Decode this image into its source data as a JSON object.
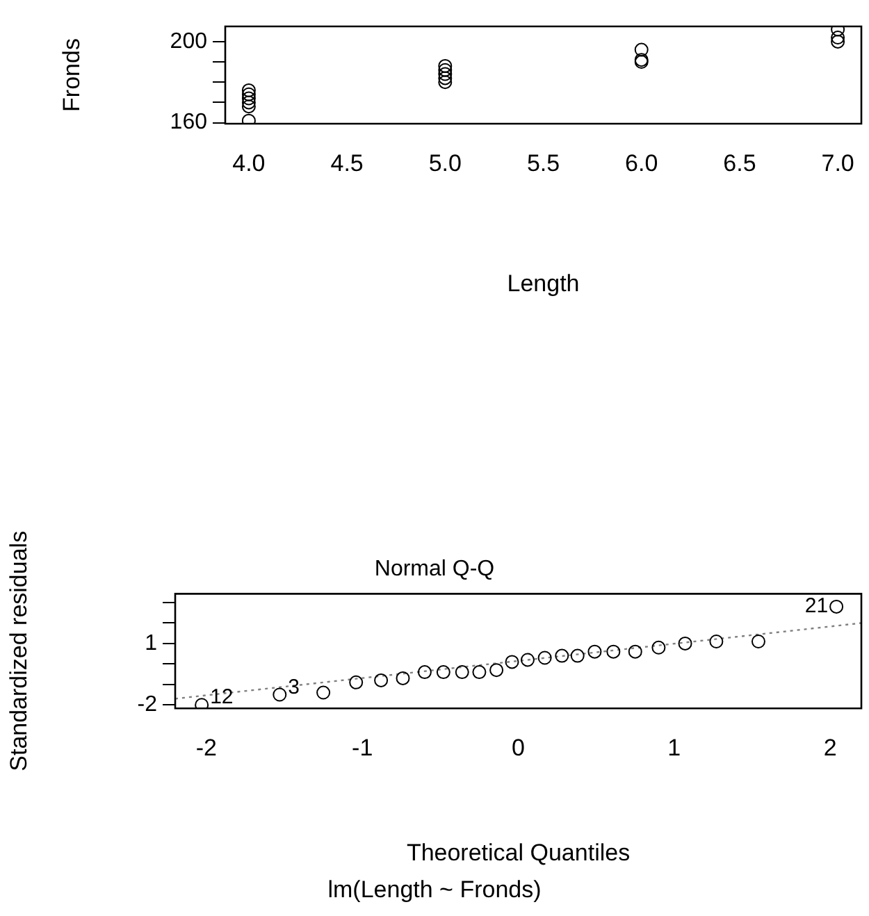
{
  "chart_data": [
    {
      "type": "scatter",
      "xlabel": "Length",
      "ylabel": "Fronds",
      "marker": "circle",
      "x": [
        4,
        4,
        4,
        4,
        4,
        4,
        5,
        5,
        5,
        5,
        5,
        6,
        6,
        6,
        7,
        7,
        7
      ],
      "values": [
        161,
        168,
        170,
        172,
        174,
        176,
        180,
        182,
        184,
        186,
        188,
        190,
        191,
        196,
        200,
        202,
        206
      ],
      "color": "#000000",
      "xlim": [
        3.88,
        7.12
      ],
      "xticks": [
        {
          "value": 4,
          "label": "4.0"
        },
        4.5,
        {
          "value": 5,
          "label": "5.0"
        },
        5.5,
        {
          "value": 6,
          "label": "6.0"
        },
        6.5,
        {
          "value": 7,
          "label": "7.0"
        }
      ],
      "ylim": [
        159.5,
        207.5
      ],
      "yticks": [
        160,
        {
          "value": 170,
          "label": null
        },
        {
          "value": 180,
          "label": null
        },
        {
          "value": 190,
          "label": null
        },
        200
      ]
    },
    {
      "type": "scatter",
      "title": "Normal Q-Q",
      "xlabel": "Theoretical Quantiles",
      "ylabel": "Standardized residuals",
      "marker": "circle",
      "series": [
        {
          "color": "#000000",
          "x": [
            -2.03,
            -1.53,
            -1.25,
            -1.04,
            -0.88,
            -0.74,
            -0.6,
            -0.48,
            -0.36,
            -0.25,
            -0.14,
            -0.04,
            0.06,
            0.17,
            0.28,
            0.38,
            0.49,
            0.61,
            0.75,
            0.9,
            1.07,
            1.27,
            1.54,
            2.04
          ],
          "values": [
            -2.0,
            -1.5,
            -1.4,
            -0.9,
            -0.8,
            -0.7,
            -0.4,
            -0.4,
            -0.4,
            -0.4,
            -0.3,
            0.1,
            0.2,
            0.3,
            0.4,
            0.4,
            0.6,
            0.6,
            0.6,
            0.8,
            1.0,
            1.1,
            1.1,
            2.8
          ]
        },
        {
          "type": "line",
          "marker": "none",
          "color": "#808080",
          "line_style": "dotted",
          "x": [
            -2.2,
            2.2
          ],
          "values": [
            -1.7,
            2.0
          ]
        }
      ],
      "xlim": [
        -2.2,
        2.2
      ],
      "xticks": [
        -2,
        -1,
        0,
        1,
        2
      ],
      "ylim": [
        -2.17,
        3.43
      ],
      "yticks": [
        -2,
        {
          "value": -1,
          "label": null
        },
        {
          "value": 0,
          "label": null
        },
        1,
        {
          "value": 2,
          "label": null
        },
        {
          "value": 3,
          "label": null
        }
      ],
      "annotations": [
        {
          "text": "12",
          "x": -2.03,
          "y": -2.0
        },
        {
          "text": "3",
          "x": -1.53,
          "y": -1.5
        },
        {
          "text": "21",
          "x": 2.04,
          "y": 2.8
        },
        "lm(Length ~ Fronds)"
      ]
    }
  ]
}
